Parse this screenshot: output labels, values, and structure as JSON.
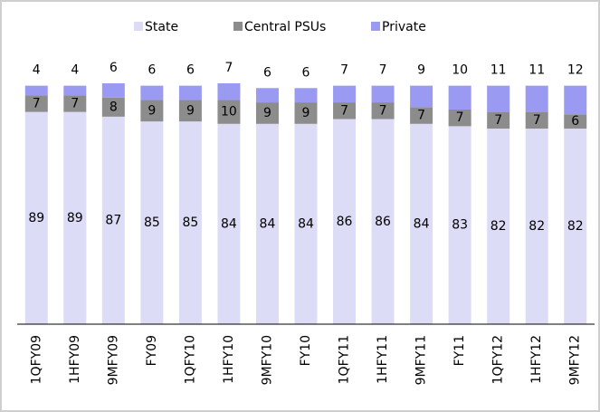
{
  "chart_data": {
    "type": "stacked_bar",
    "categories": [
      "1QFY09",
      "1HFY09",
      "9MFY09",
      "FY09",
      "1QFY10",
      "1HFY10",
      "9MFY10",
      "FY10",
      "1QFY11",
      "1HFY11",
      "9MFY11",
      "FY11",
      "1QFY12",
      "1HFY12",
      "9MFY12"
    ],
    "series": [
      {
        "name": "State",
        "color": "#dcdcf6",
        "values": [
          89,
          89,
          87,
          85,
          85,
          84,
          84,
          84,
          86,
          86,
          84,
          83,
          82,
          82,
          82
        ]
      },
      {
        "name": "Central PSUs",
        "color": "#8c8c8c",
        "values": [
          7,
          7,
          8,
          9,
          9,
          10,
          9,
          9,
          7,
          7,
          7,
          7,
          7,
          7,
          6
        ]
      },
      {
        "name": "Private",
        "color": "#9a9af2",
        "values": [
          4,
          4,
          6,
          6,
          6,
          7,
          6,
          6,
          7,
          7,
          9,
          10,
          11,
          11,
          12
        ]
      }
    ],
    "legend": "top"
  }
}
